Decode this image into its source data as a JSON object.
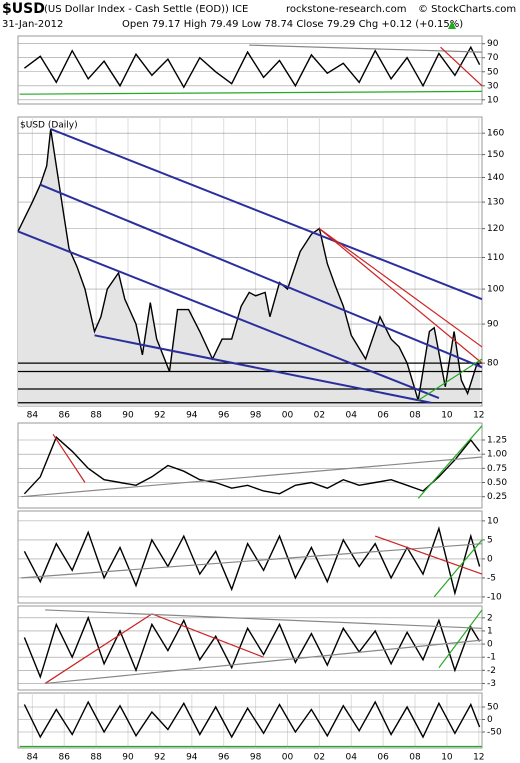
{
  "header": {
    "symbol": "$USD",
    "name": "(US Dollar Index - Cash Settle (EOD)) ICE",
    "source": "rockstone-research.com",
    "copyright": "© StockCharts.com",
    "date": "31-Jan-2012",
    "quote": "Open 79.17  High 79.49  Low 78.74  Close 79.29  Chg +0.12 (+0.15%)"
  },
  "chart_data": [
    {
      "type": "line",
      "x": [
        1983.5,
        1984.5,
        1985.5,
        1986.5,
        1987.5,
        1988.5,
        1989.5,
        1990.5,
        1991.5,
        1992.5,
        1993.5,
        1994.5,
        1995.5,
        1996.5,
        1997.5,
        1998.5,
        1999.5,
        2000.5,
        2001.5,
        2002.5,
        2003.5,
        2004.5,
        2005.5,
        2006.5,
        2007.5,
        2008.5,
        2009.5,
        2010.5,
        2011.5,
        2012.05
      ],
      "values": [
        55,
        72,
        35,
        80,
        40,
        65,
        30,
        75,
        45,
        68,
        28,
        70,
        50,
        33,
        78,
        42,
        66,
        30,
        74,
        48,
        62,
        35,
        80,
        40,
        70,
        30,
        76,
        45,
        85,
        60
      ],
      "color": "#000000",
      "xlim": [
        1983.1,
        2012.2
      ],
      "ylim": [
        4,
        101
      ],
      "yticks": [
        10,
        30,
        50,
        70,
        90
      ],
      "grid": true,
      "trendlines": [
        {
          "x": [
            1997.6,
            2012.2
          ],
          "y": [
            88,
            78
          ],
          "color": "#888888"
        },
        {
          "x": [
            2009.6,
            2012.2
          ],
          "y": [
            85,
            30
          ],
          "color": "#cc2222"
        },
        {
          "x": [
            1983.2,
            2012.2
          ],
          "y": [
            18,
            22
          ],
          "color": "#22aa22"
        }
      ]
    },
    {
      "type": "line",
      "title": "$USD (Daily)",
      "log": true,
      "x": [
        1983.1,
        1983.6,
        1984.0,
        1984.5,
        1984.9,
        1985.15,
        1985.5,
        1985.9,
        1986.3,
        1986.8,
        1987.3,
        1987.9,
        1988.3,
        1988.7,
        1989.4,
        1989.8,
        1990.5,
        1990.9,
        1991.4,
        1991.8,
        1992.6,
        1993.1,
        1993.8,
        1994.5,
        1995.3,
        1995.9,
        1996.5,
        1997.1,
        1997.6,
        1998.0,
        1998.6,
        1998.9,
        1999.5,
        2000.0,
        2000.8,
        2001.5,
        2002.0,
        2002.5,
        2003.0,
        2003.5,
        2004.0,
        2004.9,
        2005.8,
        2006.5,
        2007.0,
        2007.5,
        2008.2,
        2008.9,
        2009.2,
        2009.9,
        2010.45,
        2010.9,
        2011.3,
        2011.9,
        2012.08
      ],
      "values": [
        119,
        125,
        130,
        137,
        145,
        162,
        145,
        128,
        113,
        107,
        100,
        88,
        92,
        100,
        105,
        97,
        90,
        82,
        96,
        86,
        78,
        94,
        94,
        88,
        81,
        86,
        86,
        95,
        99,
        98,
        99,
        92,
        102,
        100,
        112,
        118,
        120,
        108,
        101,
        95,
        87,
        81,
        92,
        86,
        84,
        80,
        71.5,
        88,
        89,
        74.5,
        88,
        76,
        73,
        80,
        79.3
      ],
      "color": "#000000",
      "fill": "#e4e4e4",
      "xlim": [
        1983.1,
        2012.2
      ],
      "ylim": [
        70.3,
        168
      ],
      "yticks": [
        80,
        90,
        100,
        110,
        120,
        130,
        140,
        150,
        160
      ],
      "grid": true,
      "xticks": [
        {
          "value": 1984,
          "label": "84"
        },
        {
          "value": 1986,
          "label": "86"
        },
        {
          "value": 1988,
          "label": "88"
        },
        {
          "value": 1990,
          "label": "90"
        },
        {
          "value": 1992,
          "label": "92"
        },
        {
          "value": 1994,
          "label": "94"
        },
        {
          "value": 1996,
          "label": "96"
        },
        {
          "value": 1998,
          "label": "98"
        },
        {
          "value": 2000,
          "label": "00"
        },
        {
          "value": 2002,
          "label": "02"
        },
        {
          "value": 2004,
          "label": "04"
        },
        {
          "value": 2006,
          "label": "06"
        },
        {
          "value": 2008,
          "label": "08"
        },
        {
          "value": 2010,
          "label": "10"
        },
        {
          "value": 2012,
          "label": "12"
        }
      ],
      "hlines": [
        80,
        78,
        74,
        71
      ],
      "trendlines": [
        {
          "x": [
            1985.15,
            2012.2
          ],
          "y": [
            162,
            97
          ],
          "color": "#2b2f9e"
        },
        {
          "x": [
            1984.5,
            2012.2
          ],
          "y": [
            137,
            79
          ],
          "color": "#2b2f9e"
        },
        {
          "x": [
            1983.1,
            2009.5
          ],
          "y": [
            119,
            72
          ],
          "color": "#2b2f9e"
        },
        {
          "x": [
            1987.9,
            2009.0
          ],
          "y": [
            87,
            71
          ],
          "color": "#2b2f9e"
        },
        {
          "x": [
            2002.0,
            2012.2
          ],
          "y": [
            120,
            80
          ],
          "color": "#cc2222"
        },
        {
          "x": [
            2002.0,
            2012.2
          ],
          "y": [
            120,
            84
          ],
          "color": "#cc2222"
        },
        {
          "x": [
            2008.2,
            2012.2
          ],
          "y": [
            71.5,
            81
          ],
          "color": "#22aa22"
        }
      ]
    },
    {
      "type": "line",
      "x": [
        1983.5,
        1984.5,
        1985.5,
        1986.5,
        1987.5,
        1988.5,
        1989.5,
        1990.5,
        1991.5,
        1992.5,
        1993.5,
        1994.5,
        1995.5,
        1996.5,
        1997.5,
        1998.5,
        1999.5,
        2000.5,
        2001.5,
        2002.5,
        2003.5,
        2004.5,
        2005.5,
        2006.5,
        2007.5,
        2008.5,
        2009.5,
        2010.5,
        2011.5,
        2012.05
      ],
      "values": [
        0.3,
        0.6,
        1.3,
        1.05,
        0.75,
        0.55,
        0.5,
        0.45,
        0.6,
        0.8,
        0.7,
        0.55,
        0.5,
        0.4,
        0.45,
        0.35,
        0.3,
        0.45,
        0.5,
        0.4,
        0.55,
        0.45,
        0.5,
        0.55,
        0.45,
        0.35,
        0.6,
        0.9,
        1.25,
        1.05
      ],
      "color": "#000000",
      "xlim": [
        1983.1,
        2012.2
      ],
      "ylim": [
        0.05,
        1.55
      ],
      "yticks": [
        {
          "value": 0.25,
          "label": "0.25"
        },
        {
          "value": 0.5,
          "label": "0.50"
        },
        {
          "value": 0.75,
          "label": "0.75"
        },
        {
          "value": 1,
          "label": "1.00"
        },
        {
          "value": 1.25,
          "label": "1.25"
        }
      ],
      "grid": true,
      "trendlines": [
        {
          "x": [
            1983.3,
            2012.2
          ],
          "y": [
            0.25,
            0.95
          ],
          "color": "#888888"
        },
        {
          "x": [
            2008.2,
            2012.2
          ],
          "y": [
            0.22,
            1.5
          ],
          "color": "#22aa22"
        },
        {
          "x": [
            1985.3,
            1987.3
          ],
          "y": [
            1.35,
            0.5
          ],
          "color": "#cc2222"
        }
      ]
    },
    {
      "type": "line",
      "x": [
        1983.5,
        1984.5,
        1985.5,
        1986.5,
        1987.5,
        1988.5,
        1989.5,
        1990.5,
        1991.5,
        1992.5,
        1993.5,
        1994.5,
        1995.5,
        1996.5,
        1997.5,
        1998.5,
        1999.5,
        2000.5,
        2001.5,
        2002.5,
        2003.5,
        2004.5,
        2005.5,
        2006.5,
        2007.5,
        2008.5,
        2009.5,
        2010.5,
        2011.5,
        2012.05
      ],
      "values": [
        2,
        -6,
        4,
        -3,
        7,
        -5,
        3,
        -7,
        5,
        -2,
        6,
        -4,
        2,
        -8,
        4,
        -3,
        6,
        -5,
        3,
        -6,
        5,
        -2,
        4,
        -5,
        3,
        -4,
        8,
        -9,
        6,
        -2
      ],
      "color": "#000000",
      "xlim": [
        1983.1,
        2012.2
      ],
      "ylim": [
        -11.6,
        12.6
      ],
      "yticks": [
        -10,
        -5,
        0,
        5,
        10
      ],
      "grid": true,
      "trendlines": [
        {
          "x": [
            1983.3,
            2012.2
          ],
          "y": [
            -5,
            4
          ],
          "color": "#888888"
        },
        {
          "x": [
            2005.5,
            2012.2
          ],
          "y": [
            6,
            -4
          ],
          "color": "#cc2222"
        },
        {
          "x": [
            2009.2,
            2012.2
          ],
          "y": [
            -10,
            5
          ],
          "color": "#22aa22"
        }
      ]
    },
    {
      "type": "line",
      "x": [
        1983.5,
        1984.5,
        1985.5,
        1986.5,
        1987.5,
        1988.5,
        1989.5,
        1990.5,
        1991.5,
        1992.5,
        1993.5,
        1994.5,
        1995.5,
        1996.5,
        1997.5,
        1998.5,
        1999.5,
        2000.5,
        2001.5,
        2002.5,
        2003.5,
        2004.5,
        2005.5,
        2006.5,
        2007.5,
        2008.5,
        2009.5,
        2010.5,
        2011.5,
        2012.05
      ],
      "values": [
        0.5,
        -2.5,
        1.5,
        -1,
        2,
        -1.5,
        1,
        -2,
        1.5,
        -0.5,
        1.8,
        -1.2,
        0.6,
        -1.8,
        1.2,
        -0.8,
        1.5,
        -1.4,
        0.8,
        -1.6,
        1.2,
        -0.6,
        1.0,
        -1.5,
        0.9,
        -1.2,
        1.8,
        -2.0,
        1.3,
        0.2
      ],
      "color": "#000000",
      "xlim": [
        1983.1,
        2012.2
      ],
      "ylim": [
        -3.5,
        2.9
      ],
      "yticks": [
        -3,
        -2,
        -1,
        0,
        1,
        2
      ],
      "grid": true,
      "trendlines": [
        {
          "x": [
            1984.8,
            1991.5
          ],
          "y": [
            -3,
            2.3
          ],
          "color": "#cc2222"
        },
        {
          "x": [
            1991.5,
            1998.5
          ],
          "y": [
            2.3,
            -1
          ],
          "color": "#cc2222"
        },
        {
          "x": [
            1984.8,
            2012.2
          ],
          "y": [
            2.6,
            1.2
          ],
          "color": "#888888"
        },
        {
          "x": [
            1984.8,
            2012.2
          ],
          "y": [
            -3,
            0.3
          ],
          "color": "#888888"
        },
        {
          "x": [
            2009.5,
            2012.2
          ],
          "y": [
            -1.8,
            2.6
          ],
          "color": "#22aa22"
        }
      ]
    },
    {
      "type": "line",
      "x": [
        1983.5,
        1984.5,
        1985.5,
        1986.5,
        1987.5,
        1988.5,
        1989.5,
        1990.5,
        1991.5,
        1992.5,
        1993.5,
        1994.5,
        1995.5,
        1996.5,
        1997.5,
        1998.5,
        1999.5,
        2000.5,
        2001.5,
        2002.5,
        2003.5,
        2004.5,
        2005.5,
        2006.5,
        2007.5,
        2008.5,
        2009.5,
        2010.5,
        2011.5,
        2012.05
      ],
      "values": [
        60,
        -70,
        40,
        -60,
        70,
        -50,
        55,
        -65,
        30,
        -40,
        65,
        -60,
        50,
        -70,
        45,
        -55,
        60,
        -50,
        40,
        -65,
        55,
        -45,
        70,
        -60,
        50,
        -70,
        65,
        -55,
        60,
        -30
      ],
      "color": "#000000",
      "xlim": [
        1983.1,
        2012.2
      ],
      "ylim": [
        -114,
        106
      ],
      "yticks": [
        -50,
        0,
        50
      ],
      "grid": true,
      "xticks": [
        {
          "value": 1984,
          "label": "84"
        },
        {
          "value": 1986,
          "label": "86"
        },
        {
          "value": 1988,
          "label": "88"
        },
        {
          "value": 1990,
          "label": "90"
        },
        {
          "value": 1992,
          "label": "92"
        },
        {
          "value": 1994,
          "label": "94"
        },
        {
          "value": 1996,
          "label": "96"
        },
        {
          "value": 1998,
          "label": "98"
        },
        {
          "value": 2000,
          "label": "00"
        },
        {
          "value": 2002,
          "label": "02"
        },
        {
          "value": 2004,
          "label": "04"
        },
        {
          "value": 2006,
          "label": "06"
        },
        {
          "value": 2008,
          "label": "08"
        },
        {
          "value": 2010,
          "label": "10"
        },
        {
          "value": 2012,
          "label": "12"
        }
      ],
      "trendlines": [
        {
          "x": [
            1983.2,
            2012.2
          ],
          "y": [
            -108,
            -108
          ],
          "color": "#22aa22"
        }
      ]
    }
  ]
}
